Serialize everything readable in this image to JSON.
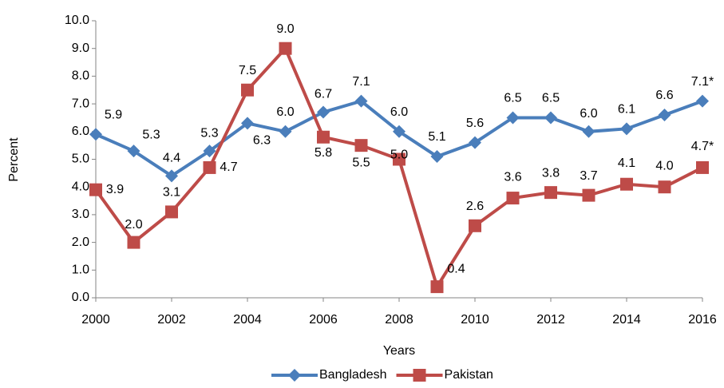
{
  "chart_data": {
    "type": "line",
    "y_label": "Percent",
    "x_label": "Years",
    "x": [
      2000,
      2001,
      2002,
      2003,
      2004,
      2005,
      2006,
      2007,
      2008,
      2009,
      2010,
      2011,
      2012,
      2013,
      2014,
      2015,
      2016
    ],
    "series": [
      {
        "name": "Bangladesh",
        "color": "#4a7ebb",
        "marker": "diamond",
        "values": [
          5.9,
          5.3,
          4.4,
          5.3,
          6.3,
          6.0,
          6.7,
          7.1,
          6.0,
          5.1,
          5.6,
          6.5,
          6.5,
          6.0,
          6.1,
          6.6,
          7.1
        ],
        "value_labels": [
          "5.9",
          "5.3",
          "4.4",
          "5.3",
          "6.3",
          "6.0",
          "6.7",
          "7.1",
          "6.0",
          "5.1",
          "5.6",
          "6.5",
          "6.5",
          "6.0",
          "6.1",
          "6.6",
          "7.1*"
        ]
      },
      {
        "name": "Pakistan",
        "color": "#be4b48",
        "marker": "square",
        "values": [
          3.9,
          2.0,
          3.1,
          4.7,
          7.5,
          9.0,
          5.8,
          5.5,
          5.0,
          0.4,
          2.6,
          3.6,
          3.8,
          3.7,
          4.1,
          4.0,
          4.7
        ],
        "value_labels": [
          "3.9",
          "2.0",
          "3.1",
          "4.7",
          "7.5",
          "9.0",
          "5.8",
          "5.5",
          "5.0",
          "0.4",
          "2.6",
          "3.6",
          "3.8",
          "3.7",
          "4.1",
          "4.0",
          "4.7*"
        ]
      }
    ],
    "xlim": [
      2000,
      2016
    ],
    "xticks": [
      2000,
      2002,
      2004,
      2006,
      2008,
      2010,
      2012,
      2014,
      2016
    ],
    "ylim": [
      0,
      10
    ],
    "yticks": [
      {
        "value": 0,
        "label": "0.0"
      },
      {
        "value": 1,
        "label": "1.0"
      },
      {
        "value": 2,
        "label": "2.0"
      },
      {
        "value": 3,
        "label": "3.0"
      },
      {
        "value": 4,
        "label": "4.0"
      },
      {
        "value": 5,
        "label": "5.0"
      },
      {
        "value": 6,
        "label": "6.0"
      },
      {
        "value": 7,
        "label": "7.0"
      },
      {
        "value": 8,
        "label": "8.0"
      },
      {
        "value": 9,
        "label": "9.0"
      },
      {
        "value": 10,
        "label": "10.0"
      }
    ],
    "legend": "bottom"
  }
}
